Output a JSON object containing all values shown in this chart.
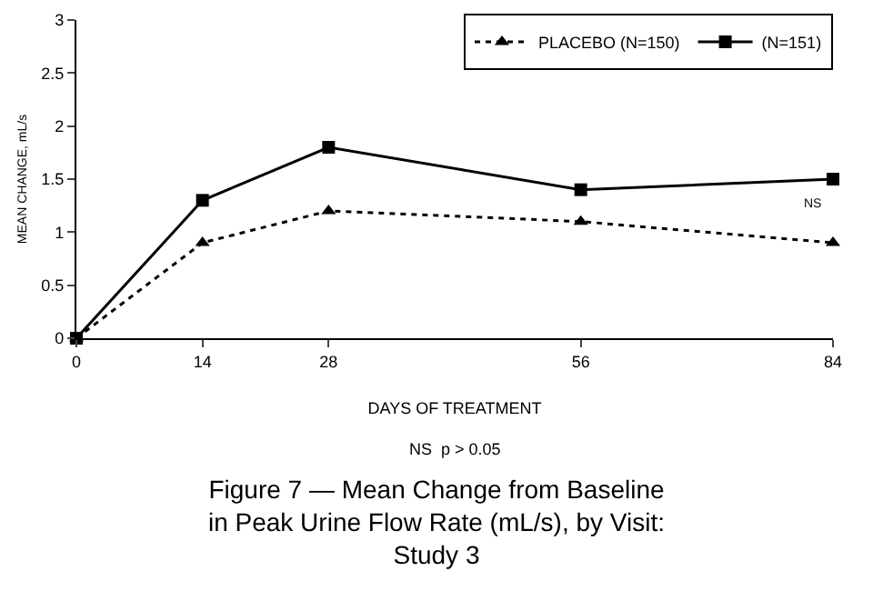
{
  "chart_data": {
    "type": "line",
    "title": "Figure 7 — Mean Change from Baseline\nin Peak Urine Flow Rate (mL/s), by Visit:\nStudy 3",
    "xlabel": "DAYS OF TREATMENT",
    "ylabel": "MEAN CHANGE, mL/s",
    "x": [
      0,
      14,
      28,
      56,
      84
    ],
    "xlim": [
      0,
      84
    ],
    "xticks": [
      0,
      14,
      28,
      56,
      84
    ],
    "ylim": [
      0,
      3
    ],
    "yticks": [
      0,
      0.5,
      1,
      1.5,
      2,
      2.5,
      3
    ],
    "series": [
      {
        "name": "PLACEBO (N=150)",
        "color": "#000000",
        "values": [
          0,
          0.9,
          1.2,
          1.1,
          0.9
        ],
        "marker": "triangle",
        "line_style": "dotted"
      },
      {
        "name": "(N=151)",
        "color": "#000000",
        "values": [
          0,
          1.3,
          1.8,
          1.4,
          1.5
        ],
        "marker": "square",
        "line_style": "solid"
      }
    ],
    "annotations": [
      "NS",
      "NS  p > 0.05"
    ],
    "legend": "top right",
    "grid": false
  }
}
